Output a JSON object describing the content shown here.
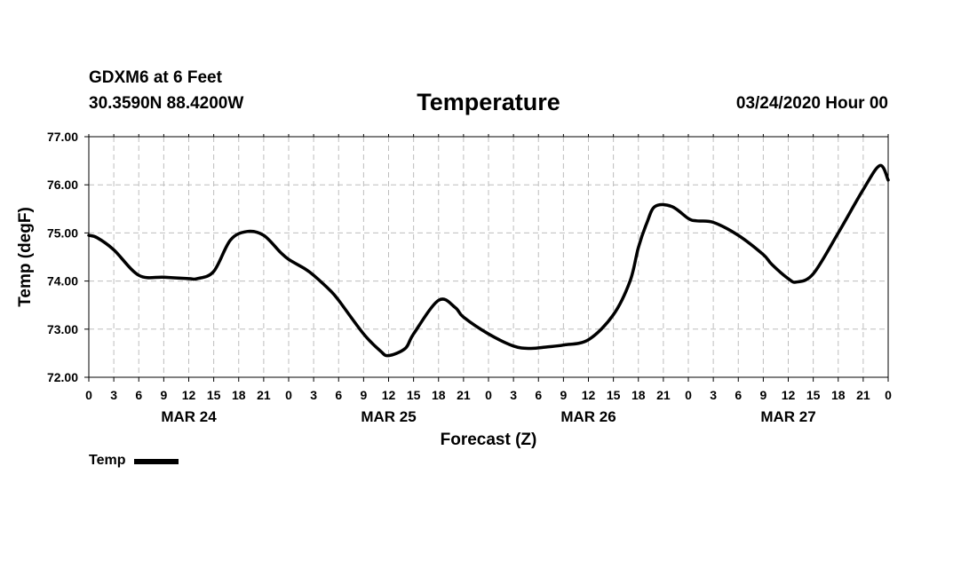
{
  "header": {
    "station": "GDXM6 at 6 Feet",
    "coords": "30.3590N 88.4200W",
    "title": "Temperature",
    "run": "03/24/2020 Hour 00"
  },
  "legend": {
    "label": "Temp",
    "color": "#000000"
  },
  "chart_data": {
    "type": "line",
    "title": "Temperature",
    "xlabel": "Forecast (Z)",
    "ylabel": "Temp (degF)",
    "ylim": [
      72.0,
      77.0
    ],
    "yticks": [
      "72.00",
      "73.00",
      "74.00",
      "75.00",
      "76.00",
      "77.00"
    ],
    "xlim": [
      0,
      96
    ],
    "xtick_hours": [
      0,
      3,
      6,
      9,
      12,
      15,
      18,
      21,
      24,
      27,
      30,
      33,
      36,
      39,
      42,
      45,
      48,
      51,
      54,
      57,
      60,
      63,
      66,
      69,
      72,
      75,
      78,
      81,
      84,
      87,
      90,
      93,
      96
    ],
    "xtick_labels": [
      "0",
      "3",
      "6",
      "9",
      "12",
      "15",
      "18",
      "21",
      "0",
      "3",
      "6",
      "9",
      "12",
      "15",
      "18",
      "21",
      "0",
      "3",
      "6",
      "9",
      "12",
      "15",
      "18",
      "21",
      "0",
      "3",
      "6",
      "9",
      "12",
      "15",
      "18",
      "21",
      "0"
    ],
    "day_labels": [
      {
        "hour": 12,
        "label": "MAR 24"
      },
      {
        "hour": 36,
        "label": "MAR 25"
      },
      {
        "hour": 60,
        "label": "MAR 26"
      },
      {
        "hour": 84,
        "label": "MAR 27"
      }
    ],
    "grid": true,
    "series": [
      {
        "name": "Temp",
        "color": "#000000",
        "x": [
          0,
          1,
          3,
          6,
          9,
          12,
          13,
          15,
          17,
          19,
          21,
          23,
          24,
          26,
          27,
          29,
          30,
          33,
          35,
          36,
          38,
          39,
          42,
          44,
          45,
          48,
          51,
          53,
          55,
          57,
          60,
          63,
          65,
          66,
          67,
          68,
          70,
          72,
          73,
          75,
          78,
          81,
          82,
          84,
          85,
          87,
          90,
          93,
          95,
          96
        ],
        "values": [
          74.95,
          74.9,
          74.65,
          74.12,
          74.08,
          74.05,
          74.05,
          74.2,
          74.85,
          75.03,
          74.95,
          74.6,
          74.45,
          74.25,
          74.12,
          73.8,
          73.6,
          72.9,
          72.55,
          72.45,
          72.6,
          72.9,
          73.6,
          73.45,
          73.25,
          72.9,
          72.65,
          72.6,
          72.63,
          72.67,
          72.78,
          73.3,
          74.0,
          74.7,
          75.2,
          75.55,
          75.55,
          75.3,
          75.25,
          75.22,
          74.95,
          74.55,
          74.35,
          74.05,
          73.98,
          74.15,
          75.0,
          75.9,
          76.4,
          76.1
        ]
      }
    ]
  }
}
